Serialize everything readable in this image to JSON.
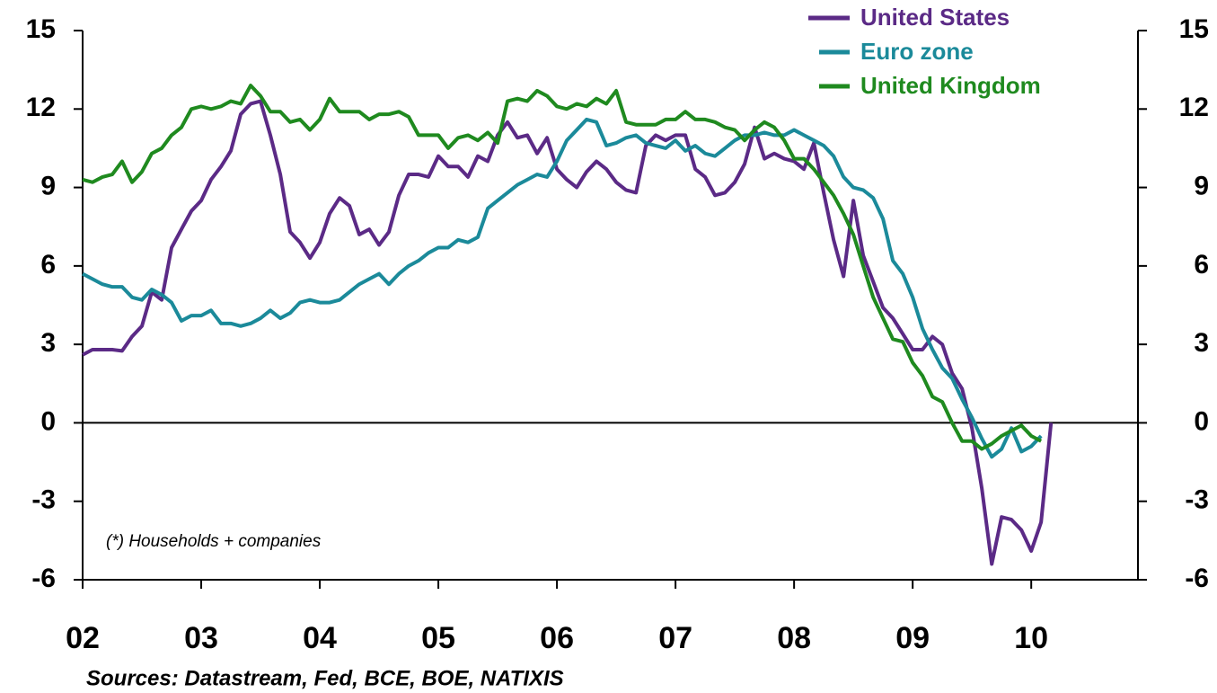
{
  "chart_data": {
    "type": "line",
    "annotation": "(*) Households + companies",
    "source": "Sources: Datastream, Fed, BCE, BOE, NATIXIS",
    "legend": "top-right",
    "xlim": [
      2,
      10.9
    ],
    "xticks": [
      {
        "value": 2,
        "label": "02"
      },
      {
        "value": 3,
        "label": "03"
      },
      {
        "value": 4,
        "label": "04"
      },
      {
        "value": 5,
        "label": "05"
      },
      {
        "value": 6,
        "label": "06"
      },
      {
        "value": 7,
        "label": "07"
      },
      {
        "value": 8,
        "label": "08"
      },
      {
        "value": 9,
        "label": "09"
      },
      {
        "value": 10,
        "label": "10"
      }
    ],
    "ylim": [
      -6,
      15
    ],
    "yticks": [
      -6,
      -3,
      0,
      3,
      6,
      9,
      12,
      15
    ],
    "y2lim": [
      -6,
      15
    ],
    "y2ticks": [
      -6,
      -3,
      0,
      3,
      6,
      9,
      12,
      15
    ],
    "x": [
      2,
      2.083,
      2.167,
      2.25,
      2.333,
      2.417,
      2.5,
      2.583,
      2.667,
      2.75,
      2.833,
      2.917,
      3,
      3.083,
      3.167,
      3.25,
      3.333,
      3.417,
      3.5,
      3.583,
      3.667,
      3.75,
      3.833,
      3.917,
      4,
      4.083,
      4.167,
      4.25,
      4.333,
      4.417,
      4.5,
      4.583,
      4.667,
      4.75,
      4.833,
      4.917,
      5,
      5.083,
      5.167,
      5.25,
      5.333,
      5.417,
      5.5,
      5.583,
      5.667,
      5.75,
      5.833,
      5.917,
      6,
      6.083,
      6.167,
      6.25,
      6.333,
      6.417,
      6.5,
      6.583,
      6.667,
      6.75,
      6.833,
      6.917,
      7,
      7.083,
      7.167,
      7.25,
      7.333,
      7.417,
      7.5,
      7.583,
      7.667,
      7.75,
      7.833,
      7.917,
      8,
      8.083,
      8.167,
      8.25,
      8.333,
      8.417,
      8.5,
      8.583,
      8.667,
      8.75,
      8.833,
      8.917,
      9,
      9.083,
      9.167,
      9.25,
      9.333,
      9.417,
      9.5,
      9.583,
      9.667,
      9.75,
      9.833,
      9.917,
      10,
      10.083,
      10.167
    ],
    "series": [
      {
        "name": "United States",
        "color": "#5b2a86",
        "values": [
          2.6,
          2.8,
          2.8,
          2.8,
          2.75,
          3.3,
          3.7,
          5.0,
          4.7,
          6.7,
          7.4,
          8.1,
          8.5,
          9.3,
          9.8,
          10.4,
          11.8,
          12.2,
          12.3,
          11.0,
          9.5,
          7.3,
          6.9,
          6.3,
          6.9,
          8.0,
          8.6,
          8.3,
          7.2,
          7.4,
          6.8,
          7.3,
          8.7,
          9.5,
          9.5,
          9.4,
          10.2,
          9.8,
          9.8,
          9.4,
          10.2,
          10.0,
          11.0,
          11.5,
          10.9,
          11.0,
          10.3,
          10.9,
          9.7,
          9.3,
          9.0,
          9.6,
          10.0,
          9.7,
          9.2,
          8.9,
          8.8,
          10.6,
          11.0,
          10.8,
          11.0,
          11.0,
          9.7,
          9.4,
          8.7,
          8.8,
          9.2,
          9.9,
          11.3,
          10.1,
          10.3,
          10.1,
          10.0,
          9.7,
          10.7,
          8.8,
          7.0,
          5.6,
          8.5,
          6.4,
          5.4,
          4.4,
          4.0,
          3.4,
          2.8,
          2.8,
          3.3,
          3.0,
          1.9,
          1.3,
          -0.2,
          -2.5,
          -5.4,
          -3.6,
          -3.7,
          -4.1,
          -4.9,
          -3.8,
          0.0
        ]
      },
      {
        "name": "Euro zone",
        "color": "#1b8a9a",
        "values": [
          5.7,
          5.5,
          5.3,
          5.2,
          5.2,
          4.8,
          4.7,
          5.1,
          4.9,
          4.6,
          3.9,
          4.1,
          4.1,
          4.3,
          3.8,
          3.8,
          3.7,
          3.8,
          4.0,
          4.3,
          4.0,
          4.2,
          4.6,
          4.7,
          4.6,
          4.6,
          4.7,
          5.0,
          5.3,
          5.5,
          5.7,
          5.3,
          5.7,
          6.0,
          6.2,
          6.5,
          6.7,
          6.7,
          7.0,
          6.9,
          7.1,
          8.2,
          8.5,
          8.8,
          9.1,
          9.3,
          9.5,
          9.4,
          10.0,
          10.8,
          11.2,
          11.6,
          11.5,
          10.6,
          10.7,
          10.9,
          11.0,
          10.7,
          10.6,
          10.5,
          10.8,
          10.4,
          10.6,
          10.3,
          10.2,
          10.5,
          10.8,
          11.0,
          11.0,
          11.1,
          11.0,
          11.0,
          11.2,
          11.0,
          10.8,
          10.6,
          10.2,
          9.4,
          9.0,
          8.9,
          8.6,
          7.8,
          6.2,
          5.7,
          4.8,
          3.6,
          2.8,
          2.1,
          1.7,
          0.9,
          0.2,
          -0.6,
          -1.3,
          -1.0,
          -0.2,
          -1.1,
          -0.9,
          -0.5,
          null
        ]
      },
      {
        "name": "United Kingdom",
        "color": "#1f8a1f",
        "values": [
          9.3,
          9.2,
          9.4,
          9.5,
          10.0,
          9.2,
          9.6,
          10.3,
          10.5,
          11.0,
          11.3,
          12.0,
          12.1,
          12.0,
          12.1,
          12.3,
          12.2,
          12.9,
          12.5,
          11.9,
          11.9,
          11.5,
          11.6,
          11.2,
          11.6,
          12.4,
          11.9,
          11.9,
          11.9,
          11.6,
          11.8,
          11.8,
          11.9,
          11.7,
          11.0,
          11.0,
          11.0,
          10.5,
          10.9,
          11.0,
          10.8,
          11.1,
          10.7,
          12.3,
          12.4,
          12.3,
          12.7,
          12.5,
          12.1,
          12.0,
          12.2,
          12.1,
          12.4,
          12.2,
          12.7,
          11.5,
          11.4,
          11.4,
          11.4,
          11.6,
          11.6,
          11.9,
          11.6,
          11.6,
          11.5,
          11.3,
          11.2,
          10.8,
          11.2,
          11.5,
          11.3,
          10.8,
          10.1,
          10.1,
          9.7,
          9.2,
          8.7,
          8.0,
          7.2,
          6.0,
          4.8,
          4.0,
          3.2,
          3.1,
          2.3,
          1.8,
          1.0,
          0.8,
          0.0,
          -0.7,
          -0.7,
          -1.0,
          -0.8,
          -0.5,
          -0.3,
          -0.1,
          -0.5,
          -0.7,
          null
        ]
      }
    ]
  }
}
